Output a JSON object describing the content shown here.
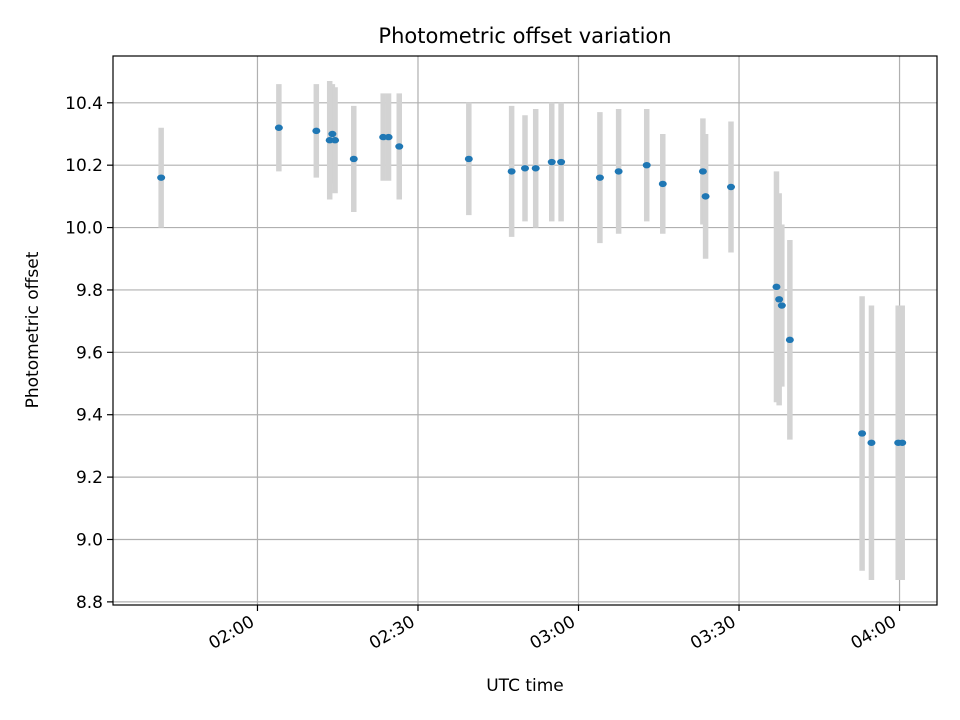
{
  "chart_data": {
    "type": "scatter",
    "title": "Photometric offset variation",
    "xlabel": "UTC time",
    "ylabel": "Photometric offset",
    "x_unit": "UTC time of day",
    "xlim": [
      "01:33:00",
      "04:07:00"
    ],
    "ylim": [
      8.79,
      10.55
    ],
    "x_ticks": [
      "02:00",
      "02:30",
      "03:00",
      "03:30",
      "04:00"
    ],
    "y_ticks": [
      "8.8",
      "9.0",
      "9.2",
      "9.4",
      "9.6",
      "9.8",
      "10.0",
      "10.2",
      "10.4"
    ],
    "grid": true,
    "legend": "none",
    "colors": {
      "point": "#1f77b4",
      "errorbar": "#d3d3d3",
      "grid": "#b0b0b0",
      "axes": "#000000"
    },
    "points": [
      {
        "time": "01:42:00",
        "y": 10.16,
        "yerr": 0.16
      },
      {
        "time": "02:04:00",
        "y": 10.32,
        "yerr": 0.14
      },
      {
        "time": "02:11:00",
        "y": 10.31,
        "yerr": 0.15
      },
      {
        "time": "02:13:30",
        "y": 10.28,
        "yerr": 0.19
      },
      {
        "time": "02:14:00",
        "y": 10.3,
        "yerr": 0.16
      },
      {
        "time": "02:14:30",
        "y": 10.28,
        "yerr": 0.17
      },
      {
        "time": "02:18:00",
        "y": 10.22,
        "yerr": 0.17
      },
      {
        "time": "02:23:30",
        "y": 10.29,
        "yerr": 0.14
      },
      {
        "time": "02:24:30",
        "y": 10.29,
        "yerr": 0.14
      },
      {
        "time": "02:26:30",
        "y": 10.26,
        "yerr": 0.17
      },
      {
        "time": "02:39:30",
        "y": 10.22,
        "yerr": 0.18
      },
      {
        "time": "02:47:30",
        "y": 10.18,
        "yerr": 0.21
      },
      {
        "time": "02:50:00",
        "y": 10.19,
        "yerr": 0.17
      },
      {
        "time": "02:52:00",
        "y": 10.19,
        "yerr": 0.19
      },
      {
        "time": "02:55:00",
        "y": 10.21,
        "yerr": 0.19
      },
      {
        "time": "02:56:45",
        "y": 10.21,
        "yerr": 0.19
      },
      {
        "time": "03:04:00",
        "y": 10.16,
        "yerr": 0.21
      },
      {
        "time": "03:07:30",
        "y": 10.18,
        "yerr": 0.2
      },
      {
        "time": "03:12:45",
        "y": 10.2,
        "yerr": 0.18
      },
      {
        "time": "03:15:45",
        "y": 10.14,
        "yerr": 0.16
      },
      {
        "time": "03:23:15",
        "y": 10.18,
        "yerr": 0.17
      },
      {
        "time": "03:23:45",
        "y": 10.1,
        "yerr": 0.2
      },
      {
        "time": "03:28:30",
        "y": 10.13,
        "yerr": 0.21
      },
      {
        "time": "03:37:00",
        "y": 9.81,
        "yerr": 0.37
      },
      {
        "time": "03:37:30",
        "y": 9.77,
        "yerr": 0.34
      },
      {
        "time": "03:38:00",
        "y": 9.75,
        "yerr": 0.26
      },
      {
        "time": "03:39:30",
        "y": 9.64,
        "yerr": 0.32
      },
      {
        "time": "03:53:00",
        "y": 9.34,
        "yerr": 0.44
      },
      {
        "time": "03:54:45",
        "y": 9.31,
        "yerr": 0.44
      },
      {
        "time": "03:59:45",
        "y": 9.31,
        "yerr": 0.44
      },
      {
        "time": "04:00:30",
        "y": 9.31,
        "yerr": 0.44
      }
    ]
  }
}
